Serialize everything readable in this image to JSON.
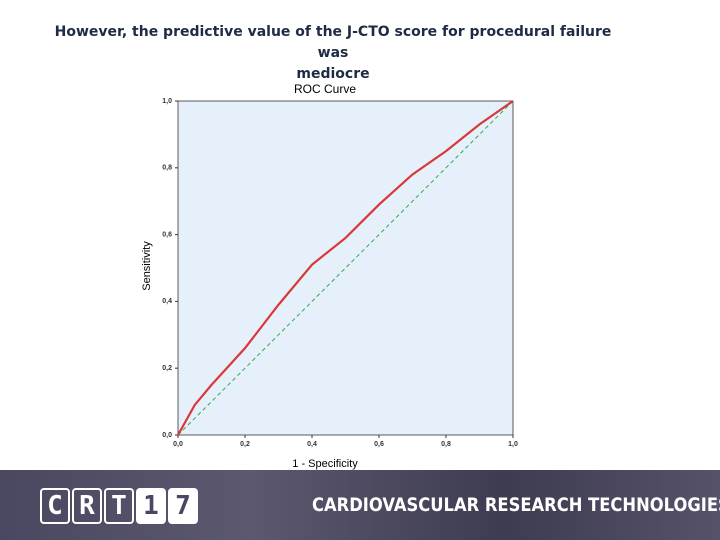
{
  "heading": [
    "However, the predictive value of  the J-CTO score for procedural failure was",
    "mediocre"
  ],
  "chart_data": {
    "type": "line",
    "title": "ROC Curve",
    "xlabel": "1 - Specificity",
    "ylabel": "Sensitivity",
    "x": [
      0,
      0.05,
      0.1,
      0.2,
      0.3,
      0.4,
      0.5,
      0.6,
      0.7,
      0.8,
      0.9,
      1
    ],
    "series": [
      {
        "color": "#d9383a",
        "values": [
          0,
          0.09,
          0.15,
          0.26,
          0.39,
          0.51,
          0.59,
          0.69,
          0.78,
          0.85,
          0.93,
          1
        ]
      },
      {
        "color": "#3aa64a",
        "dashed": true,
        "values": [
          0,
          0.05,
          0.1,
          0.2,
          0.3,
          0.4,
          0.5,
          0.6,
          0.7,
          0.8,
          0.9,
          1
        ]
      }
    ],
    "xlim": [
      0,
      1
    ],
    "ylim": [
      0,
      1
    ],
    "xticks": [
      {
        "value": 0,
        "label": "0,0"
      },
      {
        "value": 0.2,
        "label": "0,2"
      },
      {
        "value": 0.4,
        "label": "0,4"
      },
      {
        "value": 0.6,
        "label": "0,6"
      },
      {
        "value": 0.8,
        "label": "0,8"
      },
      {
        "value": 1,
        "label": "1,0"
      }
    ],
    "yticks": [
      {
        "value": 0,
        "label": "0,0"
      },
      {
        "value": 0.2,
        "label": "0,2"
      },
      {
        "value": 0.4,
        "label": "0,4"
      },
      {
        "value": 0.6,
        "label": "0,6"
      },
      {
        "value": 0.8,
        "label": "0,8"
      },
      {
        "value": 1,
        "label": "1,0"
      }
    ],
    "background": "#e6f0fa"
  },
  "footer": {
    "logo": [
      "C",
      "R",
      "T",
      "1",
      "7"
    ],
    "text": "CARDIOVASCULAR RESEARCH TECHNOLOGIES"
  }
}
